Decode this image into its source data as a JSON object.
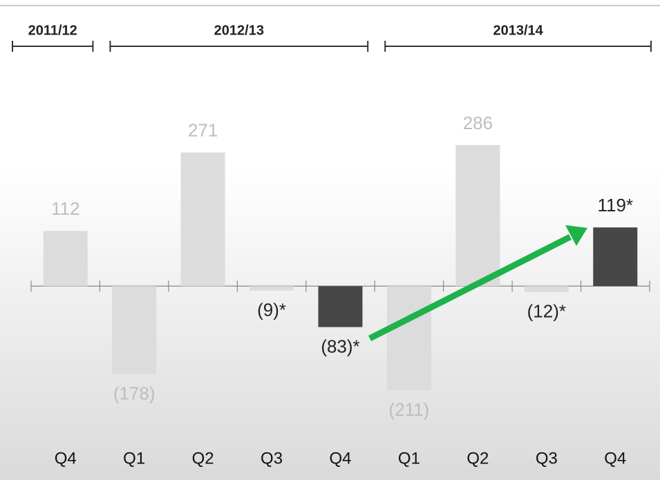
{
  "chart_data": {
    "type": "bar",
    "categories": [
      "Q4",
      "Q1",
      "Q2",
      "Q3",
      "Q4",
      "Q1",
      "Q2",
      "Q3",
      "Q4"
    ],
    "values": [
      112,
      -178,
      271,
      -9,
      -83,
      -211,
      286,
      -12,
      119
    ],
    "value_labels": [
      "112",
      "(178)",
      "271",
      "(9)*",
      "(83)*",
      "(211)",
      "286",
      "(12)*",
      "119*"
    ],
    "colors": [
      "#dcdcdc",
      "#dcdcdc",
      "#dcdcdc",
      "#dcdcdc",
      "#474747",
      "#dcdcdc",
      "#dcdcdc",
      "#dcdcdc",
      "#474747"
    ],
    "label_colors": [
      "#bdbdbd",
      "#bdbdbd",
      "#bdbdbd",
      "#222222",
      "#222222",
      "#bdbdbd",
      "#bdbdbd",
      "#222222",
      "#222222"
    ],
    "year_groups": [
      {
        "label": "2011/12",
        "quarters": 1
      },
      {
        "label": "2012/13",
        "quarters": 4
      },
      {
        "label": "2013/14",
        "quarters": 4
      }
    ]
  }
}
